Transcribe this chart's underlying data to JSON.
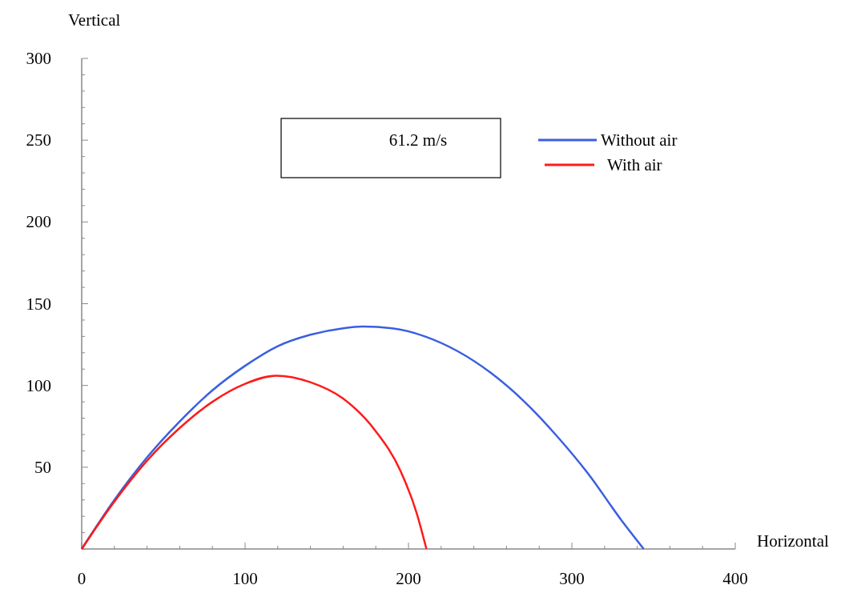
{
  "chart_data": {
    "type": "line",
    "xlabel": "Horizontal",
    "ylabel": "Vertical",
    "annotations": [
      "61.2 m/s"
    ],
    "xlim": [
      0,
      400
    ],
    "ylim": [
      0,
      300
    ],
    "xticks": [
      0,
      {
        "value": 20,
        "label": null
      },
      {
        "value": 40,
        "label": null
      },
      {
        "value": 60,
        "label": null
      },
      {
        "value": 80,
        "label": null
      },
      100,
      {
        "value": 120,
        "label": null
      },
      {
        "value": 140,
        "label": null
      },
      {
        "value": 160,
        "label": null
      },
      {
        "value": 180,
        "label": null
      },
      200,
      {
        "value": 220,
        "label": null
      },
      {
        "value": 240,
        "label": null
      },
      {
        "value": 260,
        "label": null
      },
      {
        "value": 280,
        "label": null
      },
      300,
      {
        "value": 320,
        "label": null
      },
      {
        "value": 340,
        "label": null
      },
      {
        "value": 360,
        "label": null
      },
      {
        "value": 380,
        "label": null
      },
      400
    ],
    "yticks": [
      {
        "value": 0,
        "label": null
      },
      {
        "value": 10,
        "label": null
      },
      {
        "value": 20,
        "label": null
      },
      {
        "value": 30,
        "label": null
      },
      {
        "value": 40,
        "label": null
      },
      50,
      {
        "value": 60,
        "label": null
      },
      {
        "value": 70,
        "label": null
      },
      {
        "value": 80,
        "label": null
      },
      {
        "value": 90,
        "label": null
      },
      100,
      {
        "value": 110,
        "label": null
      },
      {
        "value": 120,
        "label": null
      },
      {
        "value": 130,
        "label": null
      },
      {
        "value": 140,
        "label": null
      },
      150,
      {
        "value": 160,
        "label": null
      },
      {
        "value": 170,
        "label": null
      },
      {
        "value": 180,
        "label": null
      },
      {
        "value": 190,
        "label": null
      },
      200,
      {
        "value": 210,
        "label": null
      },
      {
        "value": 220,
        "label": null
      },
      {
        "value": 230,
        "label": null
      },
      {
        "value": 240,
        "label": null
      },
      250,
      {
        "value": 260,
        "label": null
      },
      {
        "value": 270,
        "label": null
      },
      {
        "value": 280,
        "label": null
      },
      {
        "value": 290,
        "label": null
      },
      300
    ],
    "grid": false,
    "legend": "top right",
    "marker": "none",
    "line_style": "solid",
    "series": [
      {
        "name": "Without air",
        "color": "#3a5fe0",
        "x": [
          0,
          20,
          40,
          60,
          80,
          100,
          120,
          140,
          160,
          172,
          190,
          210,
          230,
          250,
          270,
          290,
          310,
          330,
          344
        ],
        "values": [
          0,
          30,
          56,
          78,
          97,
          112,
          124,
          131,
          135,
          136,
          135,
          130,
          121,
          108,
          91,
          70,
          46,
          18,
          0
        ]
      },
      {
        "name": "With air",
        "color": "#ff1a1a",
        "x": [
          0,
          20,
          40,
          60,
          80,
          100,
          119,
          140,
          160,
          180,
          195,
          205,
          211
        ],
        "values": [
          0,
          29,
          54,
          74,
          90,
          101,
          106,
          102,
          92,
          72,
          48,
          22,
          0
        ]
      }
    ]
  }
}
